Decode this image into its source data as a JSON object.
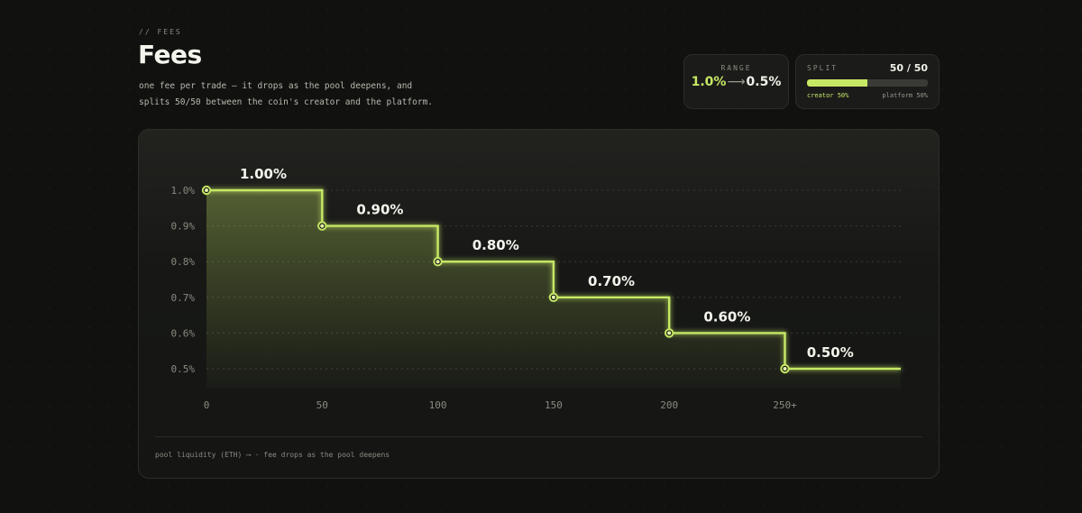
{
  "header": {
    "eyebrow": "// FEES",
    "title": "Fees",
    "description_line1": "one fee per trade — it drops as the pool deepens, and",
    "description_line2": "splits 50/50 between the coin's creator and the platform."
  },
  "range": {
    "label": "RANGE",
    "from": "1.0%",
    "arrow": "⟶",
    "to": "0.5%"
  },
  "split": {
    "label": "SPLIT",
    "ratio": "50 / 50",
    "creator_share": 0.5,
    "creator_label": "creator 50%",
    "platform_label": "platform 50%"
  },
  "footer": {
    "text": "pool liquidity (ETH) ⟶  ·  fee drops as the pool deepens"
  },
  "colors": {
    "accent": "#c6e865",
    "background": "#111110",
    "panel": "#1b1b19"
  },
  "chart_data": {
    "type": "line",
    "step": true,
    "x": [
      0,
      50,
      100,
      150,
      200,
      250
    ],
    "y": [
      1.0,
      0.9,
      0.8,
      0.7,
      0.6,
      0.5
    ],
    "data_labels": [
      "1.00%",
      "0.90%",
      "0.80%",
      "0.70%",
      "0.60%",
      "0.50%"
    ],
    "x_tick_labels": [
      "0",
      "50",
      "100",
      "150",
      "200",
      "250+"
    ],
    "y_ticks": [
      1.0,
      0.9,
      0.8,
      0.7,
      0.6,
      0.5
    ],
    "y_tick_labels": [
      "1.0%",
      "0.9%",
      "0.8%",
      "0.7%",
      "0.6%",
      "0.5%"
    ],
    "ylim": [
      0.5,
      1.0
    ],
    "xlim": [
      0,
      300
    ],
    "grid": true
  }
}
